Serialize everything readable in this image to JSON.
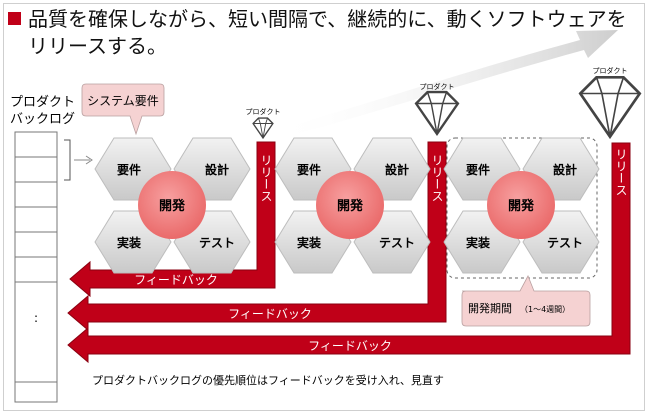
{
  "title": "品質を確保しながら、短い間隔で、継続的に、動くソフトウェアをリリースする。",
  "backlog": {
    "label_line1": "プロダクト",
    "label_line2": "バックログ",
    "dots": ":"
  },
  "callout_requirements": "システム要件",
  "product_label": "プロダクト",
  "hex_labels": {
    "requirements": "要件",
    "design": "設計",
    "implementation": "実装",
    "test": "テスト"
  },
  "center_label": "開発",
  "release_label": "リリース",
  "feedback_label": "フィードバック",
  "period_callout": "開発期間",
  "period_note": "（1～4週間）",
  "footer_note": "プロダクトバックログの優先順位はフィードバックを受け入れ、見直す",
  "colors": {
    "accent_red": "#c00018",
    "pink_circle": "#f08080",
    "hex_fill": "#dcdcdc",
    "callout_fill": "#f5d2d2"
  },
  "icons": [
    "diamond-icon"
  ]
}
